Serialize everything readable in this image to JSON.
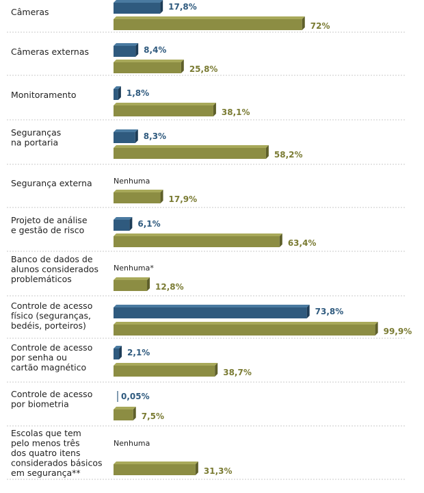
{
  "chart_data": {
    "type": "bar",
    "orientation": "horizontal",
    "xlim": [
      0,
      100
    ],
    "grid": false,
    "colors": {
      "blue": "#2f5a7e",
      "blue_top": "#4a7aa0",
      "blue_side": "#1d3c57",
      "olive": "#8c8d43",
      "olive_top": "#a8a95a",
      "olive_side": "#5e5f2a",
      "olive_text": "#7a7b33",
      "blue_text": "#2f5a7e"
    },
    "categories": [
      [
        "Câmeras"
      ],
      [
        "Câmeras externas"
      ],
      [
        "Monitoramento"
      ],
      [
        "Seguranças",
        "na portaria"
      ],
      [
        "Segurança externa"
      ],
      [
        "Projeto de análise",
        "e gestão de risco"
      ],
      [
        "Banco de dados de",
        "alunos considerados",
        "problemáticos"
      ],
      [
        "Controle de acesso",
        "físico (seguranças,",
        "bedéis, porteiros)"
      ],
      [
        "Controle de acesso",
        "por senha ou",
        "cartão magnético"
      ],
      [
        "Controle de acesso",
        "por biometria"
      ],
      [
        "Escolas que tem",
        "pelo menos três",
        "dos quatro itens",
        "considerados básicos",
        "em segurança**"
      ]
    ],
    "series": [
      {
        "color_key": "blue",
        "values": [
          17.8,
          8.4,
          1.8,
          8.3,
          null,
          6.1,
          null,
          73.8,
          2.1,
          0.05,
          null
        ],
        "labels": [
          "17,8%",
          "8,4%",
          "1,8%",
          "8,3%",
          "Nenhuma",
          "6,1%",
          "Nenhuma*",
          "73,8%",
          "2,1%",
          "0,05%",
          "Nenhuma"
        ]
      },
      {
        "color_key": "olive",
        "values": [
          72,
          25.8,
          38.1,
          58.2,
          17.9,
          63.4,
          12.8,
          99.9,
          38.7,
          7.5,
          31.3
        ],
        "labels": [
          "72%",
          "25,8%",
          "38,1%",
          "58,2%",
          "17,9%",
          "63,4%",
          "12,8%",
          "99,9%",
          "38,7%",
          "7,5%",
          "31,3%"
        ]
      }
    ]
  }
}
